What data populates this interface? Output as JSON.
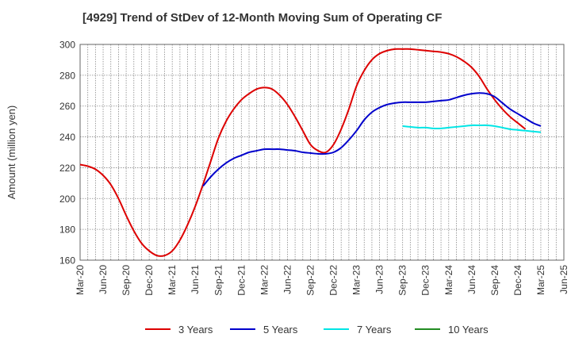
{
  "chart_data": {
    "type": "line",
    "title": "[4929]  Trend of StDev of 12-Month Moving Sum of Operating CF",
    "xlabel": "",
    "ylabel": "Amount (million yen)",
    "ylim": [
      160,
      300
    ],
    "yticks": [
      160,
      180,
      200,
      220,
      240,
      260,
      280,
      300
    ],
    "x_tick_labels": [
      "Mar-20",
      "Jun-20",
      "Sep-20",
      "Dec-20",
      "Mar-21",
      "Jun-21",
      "Sep-21",
      "Dec-21",
      "Mar-22",
      "Jun-22",
      "Sep-22",
      "Dec-22",
      "Mar-23",
      "Jun-23",
      "Sep-23",
      "Dec-23",
      "Mar-24",
      "Jun-24",
      "Sep-24",
      "Dec-24",
      "Mar-25",
      "Jun-25"
    ],
    "grid": true,
    "legend_position": "bottom",
    "series": [
      {
        "name": "3 Years",
        "color": "#dd0000",
        "start": "Mar-20",
        "values": [
          222,
          221,
          219,
          215,
          209,
          200,
          189,
          179,
          171,
          166,
          163,
          163,
          166,
          173,
          183,
          195,
          209,
          224,
          239,
          250,
          258,
          264,
          268,
          271,
          272,
          271,
          267,
          261,
          253,
          244,
          235,
          231,
          230,
          235,
          245,
          258,
          273,
          283,
          290,
          294,
          296,
          297,
          297,
          297,
          296.5,
          296,
          295.5,
          295,
          294,
          292,
          289,
          285,
          279,
          271,
          264,
          258,
          253,
          249,
          245
        ]
      },
      {
        "name": "5 Years",
        "color": "#0000cc",
        "start": "Jul-21",
        "values": [
          208,
          214,
          219,
          223,
          226,
          228,
          230,
          231,
          232,
          232,
          232,
          231.5,
          231,
          230,
          229.5,
          229,
          229,
          230,
          233,
          238,
          244,
          251,
          256,
          259,
          261,
          262,
          262.5,
          262.5,
          262.5,
          262.5,
          263,
          263.5,
          264,
          265.5,
          267,
          268,
          268.5,
          268,
          266,
          262,
          258,
          255,
          252,
          249,
          247
        ]
      },
      {
        "name": "7 Years",
        "color": "#00e5e5",
        "start": "Sep-23",
        "values": [
          247,
          246.5,
          246,
          246,
          245.5,
          245.5,
          246,
          246.5,
          247,
          247.5,
          247.5,
          247.5,
          247,
          246,
          245,
          244.5,
          244,
          243.5,
          243
        ]
      },
      {
        "name": "10 Years",
        "color": "#228b22",
        "start": "Mar-25",
        "values": []
      }
    ]
  }
}
